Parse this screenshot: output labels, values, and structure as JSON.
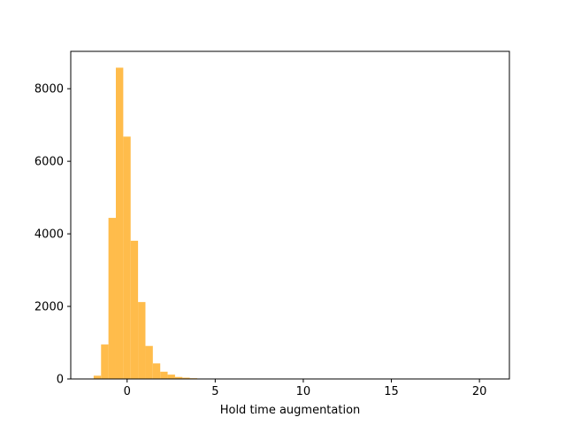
{
  "chart_data": {
    "type": "bar",
    "subtype": "histogram",
    "title": "",
    "xlabel": "Hold time augmentation",
    "ylabel": "",
    "xlim": [
      -3.2,
      21.7
    ],
    "ylim": [
      0,
      9030
    ],
    "grid": false,
    "legend": "none",
    "bar_color": "#ffbc4b",
    "bin_edges": [
      -1.9,
      -1.48,
      -1.06,
      -0.64,
      -0.22,
      0.2,
      0.62,
      1.04,
      1.46,
      1.88,
      2.3,
      2.72,
      3.14,
      3.56,
      3.98,
      4.4,
      4.82
    ],
    "values": [
      90,
      950,
      4440,
      8580,
      6680,
      3810,
      2120,
      910,
      430,
      200,
      120,
      55,
      35,
      20,
      10,
      5
    ],
    "x_ticks": [
      0,
      5,
      10,
      15,
      20
    ],
    "x_tick_labels": [
      "0",
      "5",
      "10",
      "15",
      "20"
    ],
    "y_ticks": [
      0,
      2000,
      4000,
      6000,
      8000
    ],
    "y_tick_labels": [
      "0",
      "2000",
      "4000",
      "6000",
      "8000"
    ]
  }
}
